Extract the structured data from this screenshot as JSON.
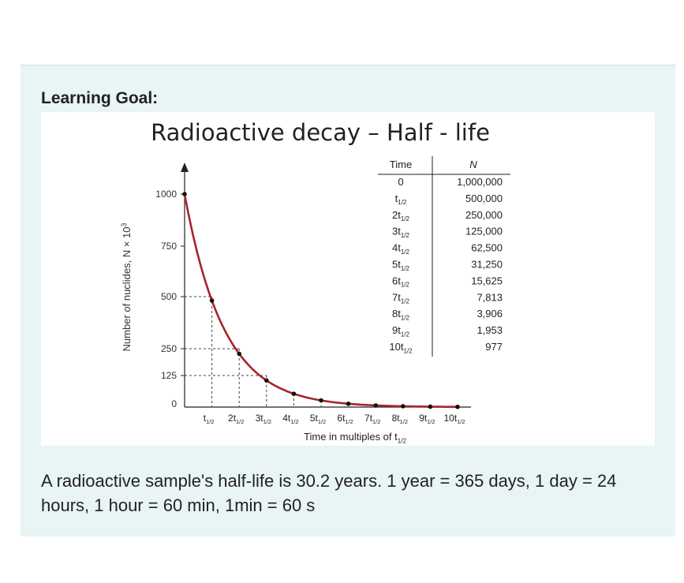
{
  "goal_label": "Learning Goal:",
  "question_text": "A radioactive sample's half-life is 30.2 years. 1 year = 365 days, 1 day = 24 hours, 1 hour = 60 min, 1min = 60 s",
  "colors": {
    "curve": "#a8242c",
    "panel": "#e9f4f4",
    "dashed": "#444444"
  },
  "chart_data": {
    "type": "line",
    "title": "Radioactive decay – Half - life",
    "xlabel_main": "Time in multiples of t",
    "xlabel_sub": "1/2",
    "ylabel": "Number of nuclides, N × 10",
    "ylabel_sup": "3",
    "ylim": [
      0,
      1000
    ],
    "xlim": [
      0,
      10
    ],
    "y_ticks": [
      {
        "v": 0,
        "label": "0"
      },
      {
        "v": 125,
        "label": "125"
      },
      {
        "v": 250,
        "label": "250"
      },
      {
        "v": 500,
        "label": "500"
      },
      {
        "v": 750,
        "label": "750"
      },
      {
        "v": 1000,
        "label": "1000"
      }
    ],
    "x_tick_labels": [
      {
        "n": "",
        "sub": "1/2"
      },
      {
        "n": "2",
        "sub": "1/2"
      },
      {
        "n": "3",
        "sub": "1/2"
      },
      {
        "n": "4",
        "sub": "1/2"
      },
      {
        "n": "5",
        "sub": "1/2"
      },
      {
        "n": "6",
        "sub": "1/2"
      },
      {
        "n": "7",
        "sub": "1/2"
      },
      {
        "n": "8",
        "sub": "1/2"
      },
      {
        "n": "9",
        "sub": "1/2"
      },
      {
        "n": "10",
        "sub": "1/2"
      }
    ],
    "points": [
      {
        "x": 0,
        "y": 1000
      },
      {
        "x": 1,
        "y": 500
      },
      {
        "x": 2,
        "y": 250
      },
      {
        "x": 3,
        "y": 125
      },
      {
        "x": 4,
        "y": 62.5
      },
      {
        "x": 5,
        "y": 31.25
      },
      {
        "x": 6,
        "y": 15.625
      },
      {
        "x": 7,
        "y": 7.813
      },
      {
        "x": 8,
        "y": 3.906
      },
      {
        "x": 9,
        "y": 1.953
      },
      {
        "x": 10,
        "y": 0.977
      }
    ],
    "table": {
      "header_time": "Time",
      "header_n": "N",
      "rows": [
        {
          "time_n": "0",
          "time_sub": "",
          "n": "1,000,000"
        },
        {
          "time_n": "",
          "time_sub": "1/2",
          "n": "500,000"
        },
        {
          "time_n": "2",
          "time_sub": "1/2",
          "n": "250,000"
        },
        {
          "time_n": "3",
          "time_sub": "1/2",
          "n": "125,000"
        },
        {
          "time_n": "4",
          "time_sub": "1/2",
          "n": "62,500"
        },
        {
          "time_n": "5",
          "time_sub": "1/2",
          "n": "31,250"
        },
        {
          "time_n": "6",
          "time_sub": "1/2",
          "n": "15,625"
        },
        {
          "time_n": "7",
          "time_sub": "1/2",
          "n": "7,813"
        },
        {
          "time_n": "8",
          "time_sub": "1/2",
          "n": "3,906"
        },
        {
          "time_n": "9",
          "time_sub": "1/2",
          "n": "1,953"
        },
        {
          "time_n": "10",
          "time_sub": "1/2",
          "n": "977"
        }
      ]
    }
  }
}
